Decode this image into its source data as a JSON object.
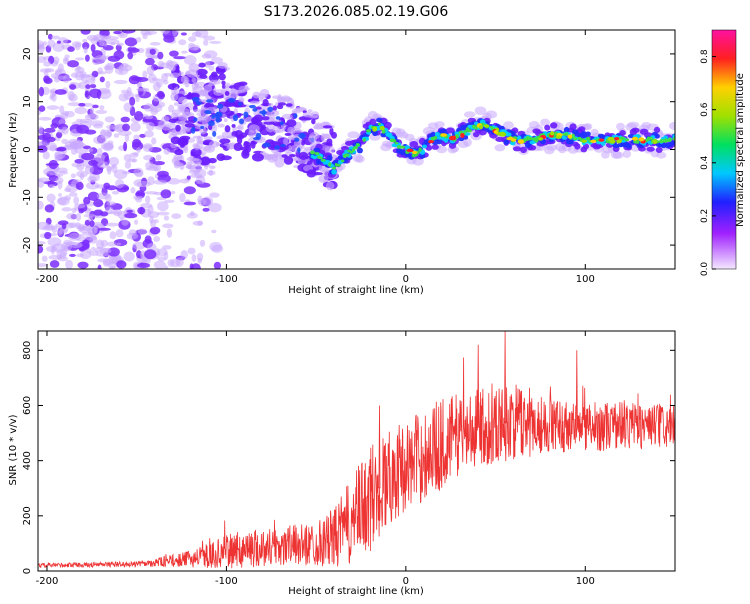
{
  "figure_title": "S173.2026.085.02.19.G06",
  "colors": {
    "snr_line": "#ee3333",
    "spectrum_blob": "#7a2cff",
    "spectrum_faint": "#c8a7ff"
  },
  "chart_data": [
    {
      "type": "heatmap",
      "name": "spectrogram",
      "xlabel": "Height of straight line (km)",
      "ylabel": "Frequency (Hz)",
      "xlim": [
        -205,
        150
      ],
      "ylim": [
        -25,
        25
      ],
      "x_ticks": [
        -200,
        -100,
        0,
        100
      ],
      "y_ticks": [
        -20,
        -10,
        0,
        10,
        20
      ],
      "ridge_x": [
        -50,
        -45,
        -40,
        -35,
        -30,
        -25,
        -20,
        -15,
        -10,
        -5,
        0,
        5,
        10,
        15,
        20,
        25,
        30,
        35,
        40,
        45,
        50,
        55,
        60,
        70,
        80,
        90,
        100,
        110,
        120,
        130,
        140,
        150
      ],
      "ridge_y": [
        -1,
        -2,
        -4,
        -2,
        0,
        1,
        4,
        5,
        3,
        1,
        0,
        -1,
        0,
        2,
        3,
        2,
        3,
        4,
        5,
        5,
        4,
        3,
        2,
        2,
        3,
        3,
        2,
        2,
        2,
        2,
        2,
        2
      ],
      "colorbar": {
        "label": "Normalized spectral amplitude",
        "range": [
          0.0,
          0.9
        ],
        "ticks": [
          0.0,
          0.2,
          0.4,
          0.6,
          0.8
        ],
        "tick_labels": [
          "0.0",
          "0.2",
          "0.4",
          "0.6",
          "0.8"
        ]
      }
    },
    {
      "type": "line",
      "name": "snr",
      "xlabel": "Height of straight line (km)",
      "ylabel": "SNR (10 * v/v)",
      "xlim": [
        -205,
        150
      ],
      "ylim": [
        0,
        870
      ],
      "x_ticks": [
        -200,
        -100,
        0,
        100
      ],
      "y_ticks": [
        0,
        200,
        400,
        600,
        800
      ],
      "envelope_x": [
        -205,
        -150,
        -125,
        -110,
        -100,
        -90,
        -80,
        -70,
        -60,
        -50,
        -40,
        -30,
        -20,
        -10,
        0,
        10,
        20,
        25,
        30,
        40,
        50,
        60,
        80,
        100,
        120,
        150
      ],
      "envelope_mean": [
        20,
        25,
        40,
        55,
        70,
        80,
        85,
        90,
        95,
        100,
        120,
        180,
        260,
        340,
        380,
        420,
        460,
        480,
        500,
        520,
        530,
        540,
        530,
        520,
        530,
        520
      ],
      "envelope_spread": [
        8,
        10,
        25,
        45,
        60,
        70,
        70,
        75,
        75,
        80,
        110,
        160,
        200,
        180,
        160,
        170,
        170,
        160,
        150,
        140,
        140,
        140,
        100,
        90,
        90,
        80
      ],
      "peak_annotations": [
        [
          -15,
          600
        ],
        [
          40,
          820
        ],
        [
          55,
          870
        ],
        [
          95,
          800
        ]
      ]
    }
  ]
}
